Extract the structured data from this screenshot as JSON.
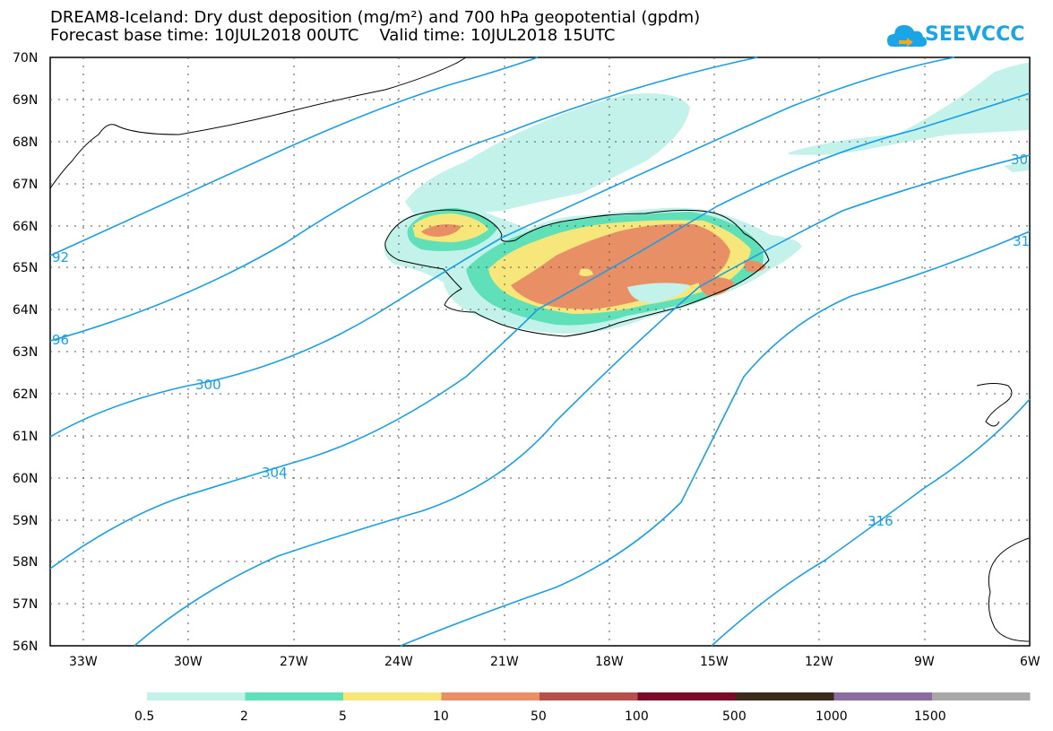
{
  "title": {
    "line1": "DREAM8-Iceland: Dry dust deposition (mg/m²) and 700 hPa geopotential (gpdm)",
    "line2": "Forecast base time: 10JUL2018 00UTC    Valid time: 10JUL2018 15UTC"
  },
  "logo": {
    "text": "SEEVCCC",
    "icon": "cloud-logo-icon",
    "color": "#1aa6e6"
  },
  "map": {
    "lat_range": [
      56,
      70
    ],
    "lon_range": [
      -34.1,
      -6
    ],
    "lat_labels": [
      "56N",
      "57N",
      "58N",
      "59N",
      "60N",
      "61N",
      "62N",
      "63N",
      "64N",
      "65N",
      "66N",
      "67N",
      "68N",
      "69N",
      "70N"
    ],
    "lon_labels": [
      "33W",
      "30W",
      "27W",
      "24W",
      "21W",
      "18W",
      "15W",
      "12W",
      "9W",
      "6W"
    ],
    "contour_color": "#1a9ee6",
    "contour_labels": [
      "92",
      "96",
      "300",
      "304",
      "316",
      "30",
      "31"
    ]
  },
  "colorbar": {
    "labels": [
      "0.5",
      "2",
      "5",
      "10",
      "50",
      "100",
      "500",
      "1000",
      "1500"
    ],
    "colors": [
      "#c2f2ea",
      "#5fe0b8",
      "#f7e77a",
      "#e98f65",
      "#b5514a",
      "#7a0a28",
      "#3b2b1a",
      "#8a6d9e",
      "#a8a8a8"
    ]
  }
}
